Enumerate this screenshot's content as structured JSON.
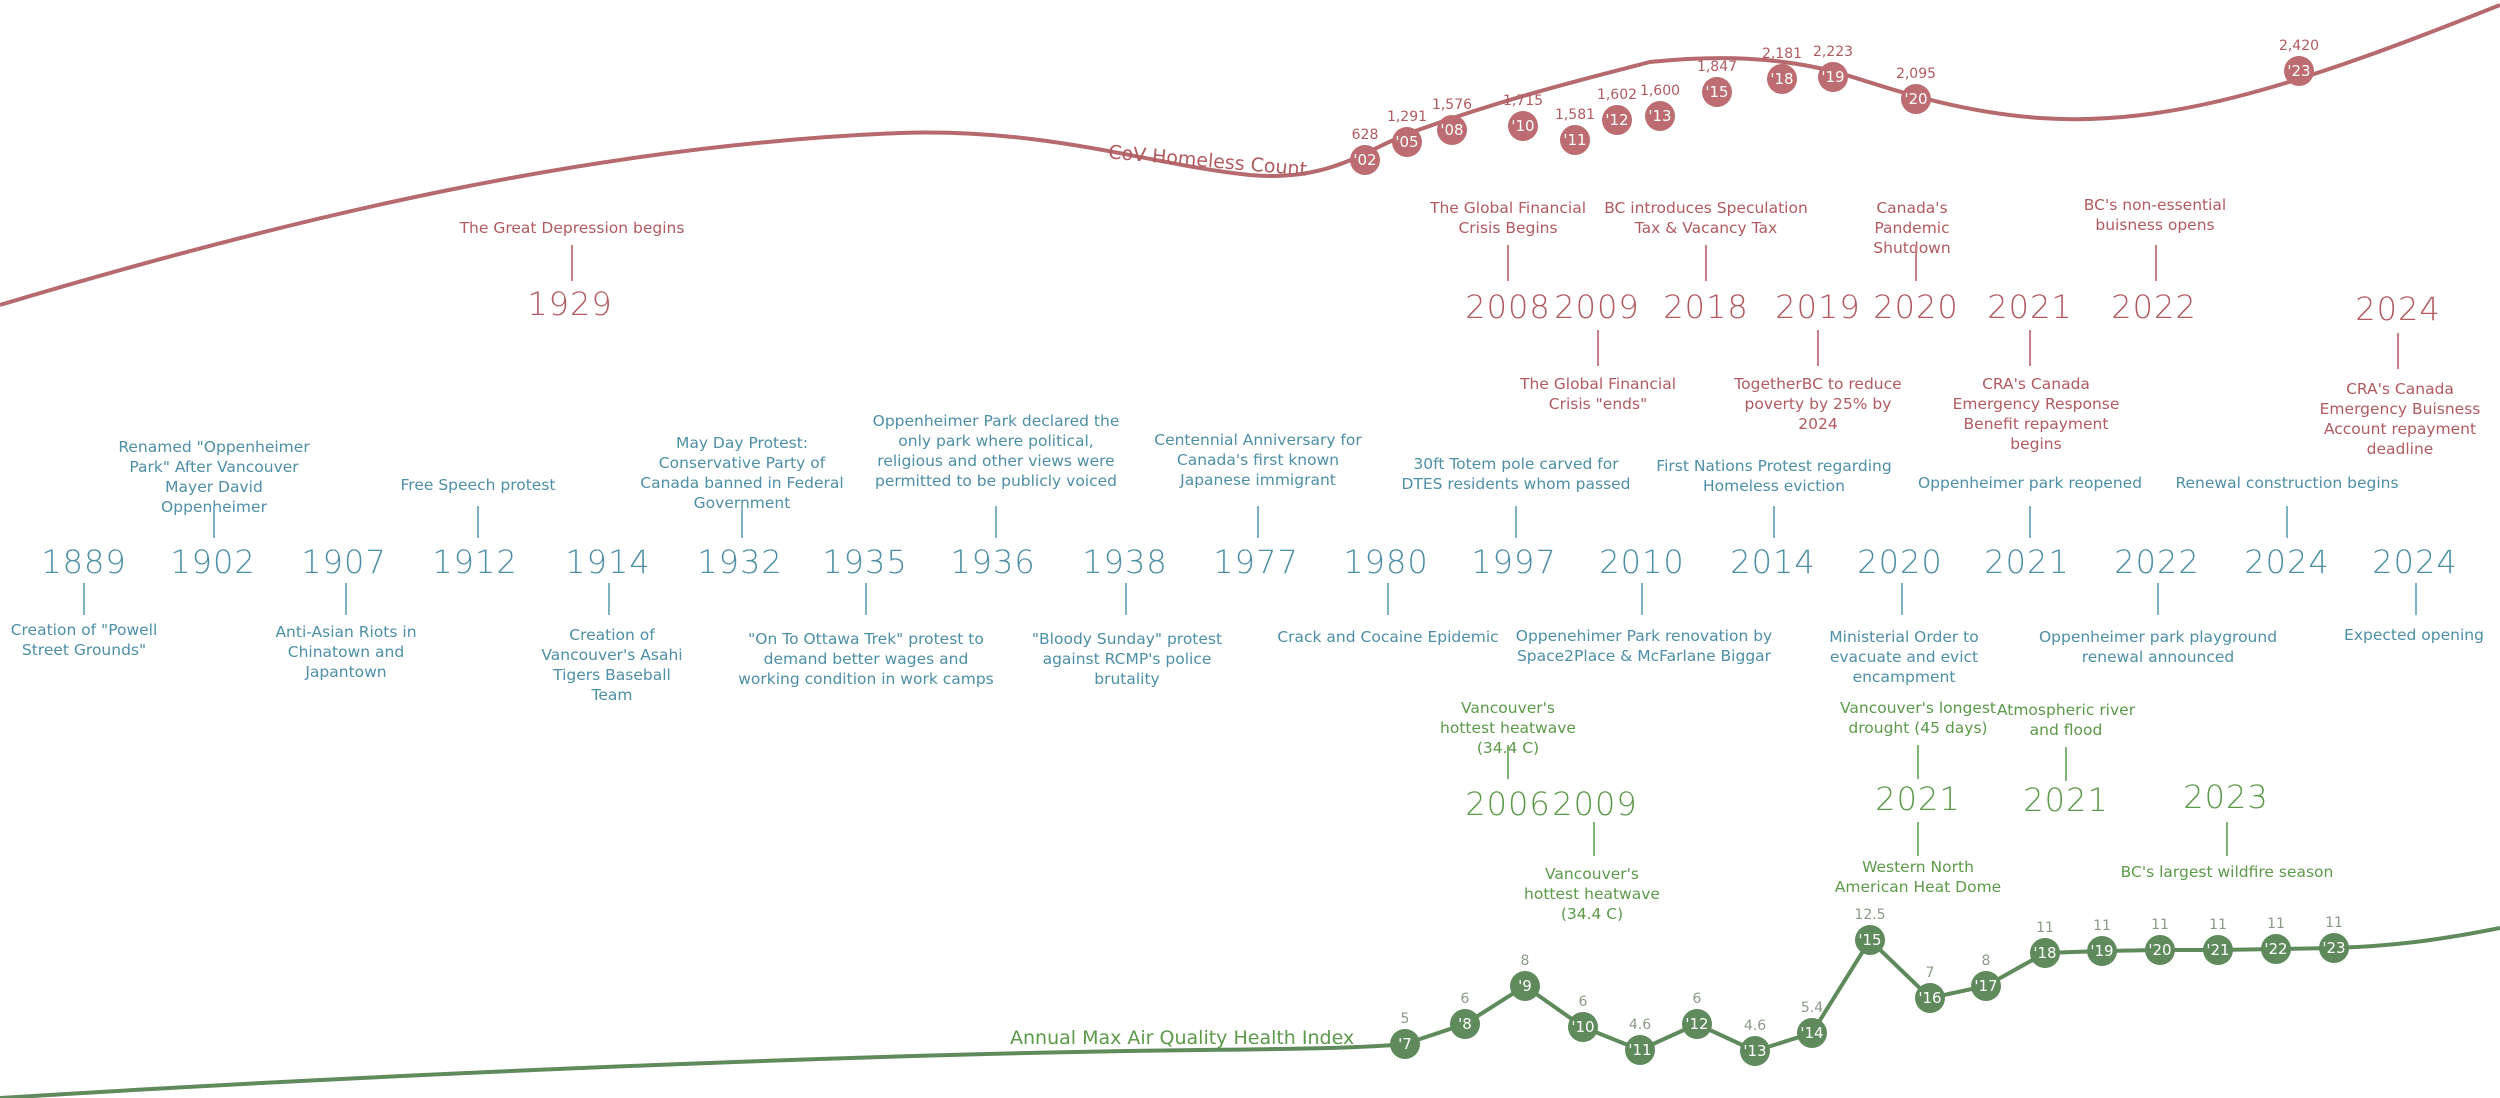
{
  "colors": {
    "red": "#b15a5f",
    "blue": "#4d8fa6",
    "green": "#5b9a49",
    "red_marker": "#bd6d71",
    "green_marker": "#5e8a5c"
  },
  "homeless": {
    "title": "CoV Homeless Count",
    "points": [
      {
        "label": "'02",
        "value": "628"
      },
      {
        "label": "'05",
        "value": "1,291"
      },
      {
        "label": "'08",
        "value": "1,576"
      },
      {
        "label": "'10",
        "value": "1,715"
      },
      {
        "label": "'11",
        "value": "1,581"
      },
      {
        "label": "'12",
        "value": "1,602"
      },
      {
        "label": "'13",
        "value": "1,600"
      },
      {
        "label": "'15",
        "value": "1,847"
      },
      {
        "label": "'18",
        "value": "2,181"
      },
      {
        "label": "'19",
        "value": "2,223"
      },
      {
        "label": "'20",
        "value": "2,095"
      },
      {
        "label": "'23",
        "value": "2,420"
      }
    ]
  },
  "air": {
    "title": "Annual Max Air Quality Health Index",
    "points": [
      {
        "label": "'7",
        "value": "5"
      },
      {
        "label": "'8",
        "value": "6"
      },
      {
        "label": "'9",
        "value": "8"
      },
      {
        "label": "'10",
        "value": "6"
      },
      {
        "label": "'11",
        "value": "4.6"
      },
      {
        "label": "'12",
        "value": "6"
      },
      {
        "label": "'13",
        "value": "4.6"
      },
      {
        "label": "'14",
        "value": "5.4"
      },
      {
        "label": "'15",
        "value": "12.5"
      },
      {
        "label": "'16",
        "value": "7"
      },
      {
        "label": "'17",
        "value": "8"
      },
      {
        "label": "'18",
        "value": "11"
      },
      {
        "label": "'19",
        "value": "11"
      },
      {
        "label": "'20",
        "value": "11"
      },
      {
        "label": "'21",
        "value": "11"
      },
      {
        "label": "'22",
        "value": "11"
      },
      {
        "label": "'23",
        "value": "11"
      }
    ]
  },
  "economic": [
    {
      "year": "1929",
      "above": "The Great Depression begins"
    },
    {
      "year": "2008",
      "above": "The Global Financial Crisis Begins"
    },
    {
      "year": "2009",
      "below": "The Global Financial Crisis \"ends\""
    },
    {
      "year": "2018",
      "above": "BC introduces Speculation Tax & Vacancy Tax"
    },
    {
      "year": "2019",
      "below": "TogetherBC to reduce poverty by 25% by 2024"
    },
    {
      "year": "2020",
      "above": "Canada's Pandemic Shutdown"
    },
    {
      "year": "2021",
      "below": "CRA's Canada Emergency Response Benefit repayment begins"
    },
    {
      "year": "2022",
      "above": "BC's non-essential buisness opens"
    },
    {
      "year": "2024",
      "below": "CRA's Canada Emergency Buisness Account repayment deadline"
    }
  ],
  "park": [
    {
      "year": "1889",
      "below": "Creation of \"Powell Street Grounds\""
    },
    {
      "year": "1902",
      "above": "Renamed \"Oppenheimer Park\" After Vancouver Mayer David Oppenheimer"
    },
    {
      "year": "1907",
      "below": "Anti-Asian Riots in Chinatown and Japantown"
    },
    {
      "year": "1912",
      "above": "Free Speech protest"
    },
    {
      "year": "1914",
      "below": "Creation of Vancouver's Asahi Tigers Baseball Team"
    },
    {
      "year": "1932",
      "above": "May Day Protest: Conservative Party of Canada banned in Federal Government"
    },
    {
      "year": "1935",
      "below": "\"On To Ottawa Trek\" protest to demand better wages and working condition in work camps"
    },
    {
      "year": "1936",
      "above": "Oppenheimer Park declared the only park where political, religious and other views were permitted to be publicly voiced"
    },
    {
      "year": "1938",
      "below": "\"Bloody Sunday\" protest against RCMP's police brutality"
    },
    {
      "year": "1977",
      "above": "Centennial Anniversary for Canada's first known Japanese immigrant"
    },
    {
      "year": "1980",
      "below": "Crack and Cocaine Epidemic"
    },
    {
      "year": "1997",
      "above": "30ft Totem pole carved for DTES residents whom passed"
    },
    {
      "year": "2010",
      "below": "Oppenehimer Park renovation by Space2Place & McFarlane Biggar"
    },
    {
      "year": "2014",
      "above": "First Nations Protest regarding Homeless eviction"
    },
    {
      "year": "2020",
      "below": "Ministerial Order to evacuate and evict encampment"
    },
    {
      "year": "2021",
      "above": "Oppenheimer park reopened"
    },
    {
      "year": "2022",
      "below": "Oppenheimer park playground renewal announced"
    },
    {
      "year": "2024",
      "above": "Renewal construction begins"
    },
    {
      "year": "2024",
      "below": "Expected opening"
    }
  ],
  "climate": [
    {
      "year": "2006",
      "above": "Vancouver's hottest heatwave (34.4 C)"
    },
    {
      "year": "2009",
      "below": "Vancouver's hottest heatwave (34.4 C)"
    },
    {
      "year": "2021",
      "above": "Vancouver's longest drought (45 days)",
      "below": "Western North American Heat Dome"
    },
    {
      "year": "2021",
      "above": "Atmospheric river and flood"
    },
    {
      "year": "2023",
      "below": "BC's largest wildfire season"
    }
  ]
}
